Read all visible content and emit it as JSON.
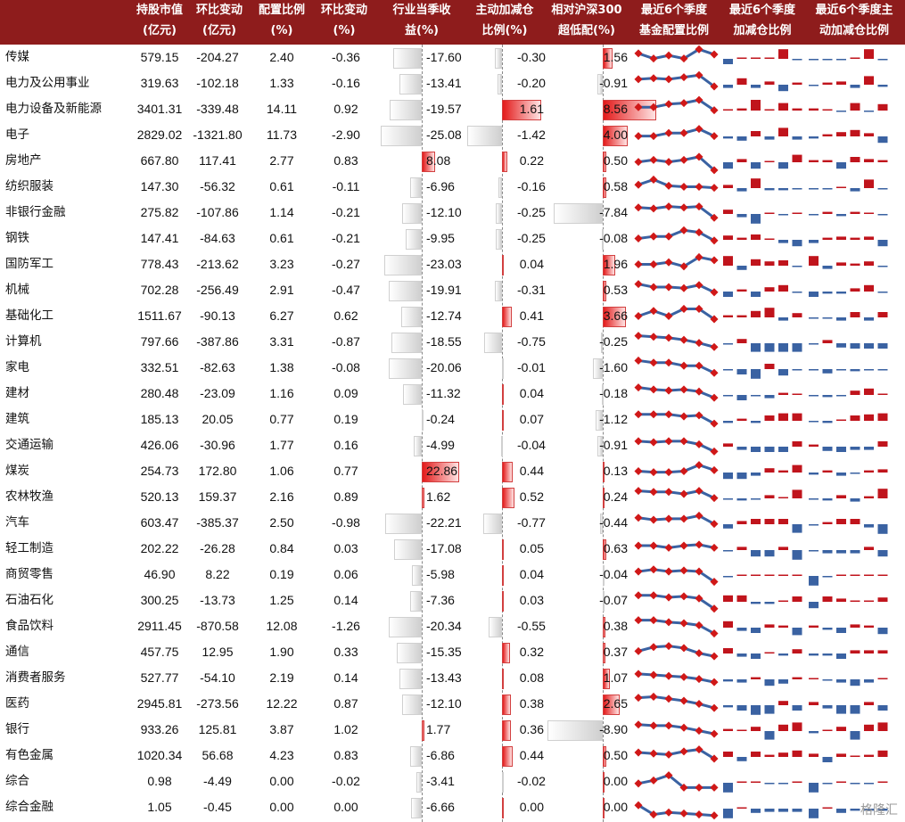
{
  "header": {
    "col1": [
      "持股市值",
      "(亿元)"
    ],
    "col2": [
      "环比变动",
      "(亿元)"
    ],
    "col3": [
      "配置比例",
      "(%)"
    ],
    "col4": [
      "环比变动",
      "(%)"
    ],
    "col5": [
      "行业当季收",
      "益(%)"
    ],
    "col6": [
      "主动加减仓",
      "比例(%)"
    ],
    "col7": [
      "相对沪深300",
      "超低配(%)"
    ],
    "col8": [
      "最近6个季度",
      "基金配置比例"
    ],
    "col9": [
      "最近6个季度",
      "加减仓比例"
    ],
    "col10": [
      "最近6个季度主",
      "动加减仓比例"
    ]
  },
  "colors": {
    "header_bg": "#8e1c1c",
    "positive": "#c0141c",
    "negative_bar": "#d4d4d4",
    "line": "#3a62a2",
    "marker": "#d01818",
    "bar_blue": "#3a62a2"
  },
  "rows": [
    {
      "name": "传媒",
      "mv": "579.15",
      "mvChg": "-204.27",
      "w": "2.40",
      "wChg": "-0.36",
      "ret": "-17.60",
      "act": "-0.30",
      "rel": "1.56"
    },
    {
      "name": "电力及公用事业",
      "mv": "319.63",
      "mvChg": "-102.18",
      "w": "1.33",
      "wChg": "-0.16",
      "ret": "-13.41",
      "act": "-0.20",
      "rel": "-0.91"
    },
    {
      "name": "电力设备及新能源",
      "mv": "3401.31",
      "mvChg": "-339.48",
      "w": "14.11",
      "wChg": "0.92",
      "ret": "-19.57",
      "act": "1.61",
      "rel": "8.56"
    },
    {
      "name": "电子",
      "mv": "2829.02",
      "mvChg": "-1321.80",
      "w": "11.73",
      "wChg": "-2.90",
      "ret": "-25.08",
      "act": "-1.42",
      "rel": "4.00"
    },
    {
      "name": "房地产",
      "mv": "667.80",
      "mvChg": "117.41",
      "w": "2.77",
      "wChg": "0.83",
      "ret": "8.08",
      "act": "0.22",
      "rel": "0.50"
    },
    {
      "name": "纺织服装",
      "mv": "147.30",
      "mvChg": "-56.32",
      "w": "0.61",
      "wChg": "-0.11",
      "ret": "-6.96",
      "act": "-0.16",
      "rel": "0.58"
    },
    {
      "name": "非银行金融",
      "mv": "275.82",
      "mvChg": "-107.86",
      "w": "1.14",
      "wChg": "-0.21",
      "ret": "-12.10",
      "act": "-0.25",
      "rel": "-7.84"
    },
    {
      "name": "钢铁",
      "mv": "147.41",
      "mvChg": "-84.63",
      "w": "0.61",
      "wChg": "-0.21",
      "ret": "-9.95",
      "act": "-0.25",
      "rel": "-0.08"
    },
    {
      "name": "国防军工",
      "mv": "778.43",
      "mvChg": "-213.62",
      "w": "3.23",
      "wChg": "-0.27",
      "ret": "-23.03",
      "act": "0.04",
      "rel": "1.96"
    },
    {
      "name": "机械",
      "mv": "702.28",
      "mvChg": "-256.49",
      "w": "2.91",
      "wChg": "-0.47",
      "ret": "-19.91",
      "act": "-0.31",
      "rel": "0.53"
    },
    {
      "name": "基础化工",
      "mv": "1511.67",
      "mvChg": "-90.13",
      "w": "6.27",
      "wChg": "0.62",
      "ret": "-12.74",
      "act": "0.41",
      "rel": "3.66"
    },
    {
      "name": "计算机",
      "mv": "797.66",
      "mvChg": "-387.86",
      "w": "3.31",
      "wChg": "-0.87",
      "ret": "-18.55",
      "act": "-0.75",
      "rel": "-0.25"
    },
    {
      "name": "家电",
      "mv": "332.51",
      "mvChg": "-82.63",
      "w": "1.38",
      "wChg": "-0.08",
      "ret": "-20.06",
      "act": "-0.01",
      "rel": "-1.60"
    },
    {
      "name": "建材",
      "mv": "280.48",
      "mvChg": "-23.09",
      "w": "1.16",
      "wChg": "0.09",
      "ret": "-11.32",
      "act": "0.04",
      "rel": "-0.18"
    },
    {
      "name": "建筑",
      "mv": "185.13",
      "mvChg": "20.05",
      "w": "0.77",
      "wChg": "0.19",
      "ret": "-0.24",
      "act": "0.07",
      "rel": "-1.12"
    },
    {
      "name": "交通运输",
      "mv": "426.06",
      "mvChg": "-30.96",
      "w": "1.77",
      "wChg": "0.16",
      "ret": "-4.99",
      "act": "-0.04",
      "rel": "-0.91"
    },
    {
      "name": "煤炭",
      "mv": "254.73",
      "mvChg": "172.80",
      "w": "1.06",
      "wChg": "0.77",
      "ret": "22.86",
      "act": "0.44",
      "rel": "0.13"
    },
    {
      "name": "农林牧渔",
      "mv": "520.13",
      "mvChg": "159.37",
      "w": "2.16",
      "wChg": "0.89",
      "ret": "1.62",
      "act": "0.52",
      "rel": "0.24"
    },
    {
      "name": "汽车",
      "mv": "603.47",
      "mvChg": "-385.37",
      "w": "2.50",
      "wChg": "-0.98",
      "ret": "-22.21",
      "act": "-0.77",
      "rel": "-0.44"
    },
    {
      "name": "轻工制造",
      "mv": "202.22",
      "mvChg": "-26.28",
      "w": "0.84",
      "wChg": "0.03",
      "ret": "-17.08",
      "act": "0.05",
      "rel": "0.63"
    },
    {
      "name": "商贸零售",
      "mv": "46.90",
      "mvChg": "8.22",
      "w": "0.19",
      "wChg": "0.06",
      "ret": "-5.98",
      "act": "0.04",
      "rel": "-0.04"
    },
    {
      "name": "石油石化",
      "mv": "300.25",
      "mvChg": "-13.73",
      "w": "1.25",
      "wChg": "0.14",
      "ret": "-7.36",
      "act": "0.03",
      "rel": "-0.07"
    },
    {
      "name": "食品饮料",
      "mv": "2911.45",
      "mvChg": "-870.58",
      "w": "12.08",
      "wChg": "-1.26",
      "ret": "-20.34",
      "act": "-0.55",
      "rel": "0.38"
    },
    {
      "name": "通信",
      "mv": "457.75",
      "mvChg": "12.95",
      "w": "1.90",
      "wChg": "0.33",
      "ret": "-15.35",
      "act": "0.32",
      "rel": "0.37"
    },
    {
      "name": "消费者服务",
      "mv": "527.77",
      "mvChg": "-54.10",
      "w": "2.19",
      "wChg": "0.14",
      "ret": "-13.43",
      "act": "0.08",
      "rel": "1.07"
    },
    {
      "name": "医药",
      "mv": "2945.81",
      "mvChg": "-273.56",
      "w": "12.22",
      "wChg": "0.87",
      "ret": "-12.10",
      "act": "0.38",
      "rel": "2.65"
    },
    {
      "name": "银行",
      "mv": "933.26",
      "mvChg": "125.81",
      "w": "3.87",
      "wChg": "1.02",
      "ret": "1.77",
      "act": "0.36",
      "rel": "-8.90"
    },
    {
      "name": "有色金属",
      "mv": "1020.34",
      "mvChg": "56.68",
      "w": "4.23",
      "wChg": "0.83",
      "ret": "-6.86",
      "act": "0.44",
      "rel": "0.50"
    },
    {
      "name": "综合",
      "mv": "0.98",
      "mvChg": "-4.49",
      "w": "0.00",
      "wChg": "-0.02",
      "ret": "-3.41",
      "act": "-0.02",
      "rel": "0.00"
    },
    {
      "name": "综合金融",
      "mv": "1.05",
      "mvChg": "-0.45",
      "w": "0.00",
      "wChg": "0.00",
      "ret": "-6.66",
      "act": "0.00",
      "rel": "0.00"
    }
  ],
  "trend": [
    [
      0.3,
      0.55,
      0.4,
      0.55,
      0.1,
      0.35
    ],
    [
      0.3,
      0.25,
      0.3,
      0.2,
      0.1,
      0.65
    ],
    [
      0.4,
      0.4,
      0.25,
      0.2,
      0.05,
      0.55
    ],
    [
      0.55,
      0.55,
      0.4,
      0.4,
      0.2,
      0.55
    ],
    [
      0.55,
      0.45,
      0.55,
      0.45,
      0.3,
      0.95
    ],
    [
      0.4,
      0.15,
      0.45,
      0.5,
      0.5,
      0.55
    ],
    [
      0.25,
      0.3,
      0.2,
      0.25,
      0.2,
      0.75
    ],
    [
      0.5,
      0.4,
      0.4,
      0.1,
      0.2,
      0.6
    ],
    [
      0.5,
      0.5,
      0.4,
      0.6,
      0.15,
      0.3
    ],
    [
      0.2,
      0.35,
      0.35,
      0.4,
      0.25,
      0.6
    ],
    [
      0.5,
      0.25,
      0.5,
      0.15,
      0.15,
      0.65
    ],
    [
      0.2,
      0.25,
      0.3,
      0.4,
      0.55,
      0.75
    ],
    [
      0.15,
      0.25,
      0.25,
      0.4,
      0.4,
      0.75
    ],
    [
      0.2,
      0.3,
      0.35,
      0.3,
      0.4,
      0.7
    ],
    [
      0.25,
      0.25,
      0.25,
      0.35,
      0.3,
      0.7
    ],
    [
      0.3,
      0.35,
      0.3,
      0.3,
      0.45,
      0.8
    ],
    [
      0.5,
      0.55,
      0.55,
      0.5,
      0.2,
      0.45
    ],
    [
      0.2,
      0.25,
      0.25,
      0.35,
      0.2,
      0.55
    ],
    [
      0.25,
      0.35,
      0.3,
      0.3,
      0.15,
      0.55
    ],
    [
      0.35,
      0.35,
      0.45,
      0.35,
      0.3,
      0.45
    ],
    [
      0.35,
      0.25,
      0.35,
      0.3,
      0.35,
      0.85
    ],
    [
      0.25,
      0.25,
      0.35,
      0.3,
      0.4,
      0.9
    ],
    [
      0.2,
      0.2,
      0.3,
      0.35,
      0.45,
      0.85
    ],
    [
      0.45,
      0.25,
      0.2,
      0.3,
      0.55,
      0.7
    ],
    [
      0.3,
      0.35,
      0.4,
      0.45,
      0.55,
      0.7
    ],
    [
      0.2,
      0.15,
      0.25,
      0.35,
      0.5,
      0.7
    ],
    [
      0.25,
      0.3,
      0.3,
      0.4,
      0.55,
      0.7
    ],
    [
      0.35,
      0.4,
      0.45,
      0.3,
      0.2,
      0.65
    ],
    [
      0.6,
      0.45,
      0.2,
      0.8,
      0.8,
      0.8
    ],
    [
      0.4,
      0.85,
      0.75,
      0.8,
      0.85,
      0.9
    ]
  ],
  "chg6": [
    [
      -0.5,
      0.1,
      0.1,
      0.1,
      0.9,
      -0.1
    ],
    [
      -0.3,
      0.6,
      -0.3,
      0.3,
      -0.6,
      0.2
    ],
    [
      0.1,
      0.2,
      1.0,
      0.1,
      0.7,
      0.2
    ],
    [
      -0.2,
      -0.4,
      0.5,
      -0.3,
      0.8,
      -0.3
    ],
    [
      -0.6,
      0.3,
      -0.6,
      0.1,
      -0.6,
      0.7
    ],
    [
      0.3,
      -0.3,
      0.9,
      -0.2,
      -0.2,
      -0.1
    ],
    [
      0.4,
      -0.3,
      -0.9,
      0.1,
      -0.1,
      0.1
    ],
    [
      0.4,
      0.2,
      0.5,
      0.1,
      -0.3,
      -0.6
    ],
    [
      0.9,
      -0.4,
      0.6,
      0.4,
      0.5,
      -0.1
    ],
    [
      -0.5,
      0.2,
      -0.5,
      0.4,
      0.6,
      -0.1
    ],
    [
      0.2,
      0.2,
      0.6,
      0.9,
      -0.3,
      0.4
    ],
    [
      -0.1,
      0.4,
      -0.8,
      -0.8,
      -0.8,
      -0.8
    ],
    [
      -0.1,
      -0.5,
      -0.9,
      0.5,
      -0.6,
      -0.1
    ],
    [
      -0.1,
      -0.5,
      -0.1,
      -0.3,
      0.2,
      0.1
    ],
    [
      -0.2,
      0.2,
      -0.2,
      0.5,
      0.7,
      0.7
    ],
    [
      0.3,
      -0.3,
      -0.5,
      -0.5,
      -0.5,
      0.5
    ],
    [
      -0.6,
      -0.6,
      -0.3,
      0.4,
      0.2,
      0.7
    ],
    [
      -0.1,
      -0.2,
      -0.1,
      0.3,
      0.1,
      0.8
    ],
    [
      -0.4,
      0.3,
      0.5,
      0.5,
      0.5,
      -0.8
    ],
    [
      -0.1,
      0.3,
      -0.6,
      -0.6,
      0.3,
      -0.9
    ],
    [
      -0.1,
      0.1,
      0.1,
      0.1,
      0.1,
      0.1
    ],
    [
      0.6,
      0.6,
      -0.2,
      -0.2,
      0.1,
      0.5
    ],
    [
      0.6,
      -0.3,
      -0.5,
      0.3,
      0.2,
      -0.7
    ],
    [
      0.5,
      -0.3,
      -0.5,
      0.1,
      -0.2,
      0.4
    ],
    [
      -0.2,
      -0.3,
      0.2,
      -0.6,
      -0.4,
      0.2
    ],
    [
      -0.2,
      -0.5,
      -0.9,
      -0.8,
      0.4,
      -0.5
    ],
    [
      0.2,
      0.1,
      0.4,
      -0.8,
      0.6,
      0.8
    ],
    [
      0.5,
      -0.4,
      0.5,
      0.2,
      0.4,
      0.6
    ],
    [
      -0.9,
      0.1,
      0.1,
      -0.1,
      -0.1,
      0.1
    ],
    [
      -0.9,
      0.1,
      -0.4,
      -0.3,
      -0.3,
      -0.3
    ]
  ],
  "act6": [
    [
      -0.1,
      -0.1,
      -0.1,
      0.1,
      0.9,
      -0.1
    ],
    [
      -0.1,
      0.2,
      0.3,
      -0.3,
      0.8,
      -0.2
    ],
    [
      0.2,
      0.1,
      -0.1,
      0.7,
      -0.1,
      0.6
    ],
    [
      -0.2,
      0.2,
      0.4,
      0.6,
      0.3,
      -0.6
    ],
    [
      0.2,
      0.2,
      -0.6,
      0.5,
      0.3,
      0.2
    ],
    [
      -0.1,
      -0.1,
      0.1,
      -0.3,
      0.8,
      -0.1
    ],
    [
      -0.1,
      0.2,
      -0.2,
      0.2,
      0.1,
      -0.1
    ],
    [
      -0.3,
      0.2,
      0.3,
      0.2,
      0.3,
      -0.6
    ],
    [
      0.9,
      -0.3,
      0.3,
      0.2,
      0.4,
      -0.1
    ],
    [
      -0.5,
      -0.2,
      -0.2,
      0.3,
      0.6,
      -0.1
    ],
    [
      -0.1,
      -0.1,
      -0.3,
      0.5,
      -0.3,
      0.5
    ],
    [
      -0.1,
      0.3,
      -0.4,
      -0.5,
      -0.5,
      -0.5
    ],
    [
      -0.1,
      -0.4,
      -0.1,
      -0.2,
      -0.1,
      -0.1
    ],
    [
      -0.1,
      -0.2,
      -0.1,
      0.4,
      0.6,
      0.1
    ],
    [
      -0.1,
      -0.2,
      0.1,
      0.5,
      0.6,
      0.7
    ],
    [
      0.2,
      -0.4,
      -0.5,
      -0.3,
      -0.3,
      0.5
    ],
    [
      -0.2,
      0.2,
      -0.3,
      -0.1,
      0.2,
      0.3
    ],
    [
      -0.1,
      -0.2,
      0.3,
      -0.3,
      0.2,
      0.9
    ],
    [
      -0.1,
      0.2,
      0.5,
      0.5,
      -0.3,
      -0.9
    ],
    [
      -0.1,
      -0.3,
      -0.3,
      -0.3,
      0.3,
      -0.6
    ],
    [
      -0.9,
      -0.1,
      0.1,
      0.1,
      0.1,
      0.1
    ],
    [
      -0.6,
      0.5,
      0.3,
      0.1,
      0.1,
      0.4
    ],
    [
      0.2,
      -0.2,
      -0.5,
      0.3,
      0.2,
      -0.6
    ],
    [
      -0.2,
      -0.2,
      -0.5,
      0.3,
      0.3,
      0.3
    ],
    [
      0.1,
      -0.1,
      -0.3,
      -0.6,
      -0.3,
      0.1
    ],
    [
      0.3,
      -0.3,
      -0.8,
      -0.8,
      0.3,
      -0.5
    ],
    [
      -0.2,
      0.1,
      0.4,
      -0.8,
      0.6,
      0.8
    ],
    [
      0.3,
      -0.5,
      0.3,
      0.1,
      0.2,
      0.6
    ],
    [
      -0.9,
      -0.1,
      0.1,
      -0.1,
      -0.1,
      0.1
    ],
    [
      -0.9,
      0.1,
      -0.4,
      -0.2,
      -0.2,
      -0.2
    ]
  ],
  "watermark": "格隆汇"
}
